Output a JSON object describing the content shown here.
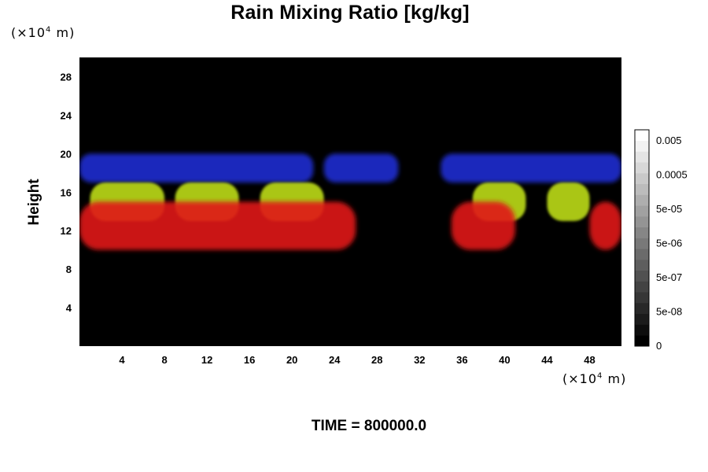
{
  "chart_data": {
    "type": "heatmap",
    "title": "Rain Mixing Ratio [kg/kg]",
    "ylabel": "Height",
    "xlabel": "",
    "y_unit": {
      "prefix": "(×10",
      "exp": "4",
      "suffix": " m)"
    },
    "x_unit": {
      "prefix": "(×10",
      "exp": "4",
      "suffix": " m)"
    },
    "xlim": [
      0,
      51
    ],
    "ylim": [
      0,
      30
    ],
    "x_ticks": [
      "4",
      "8",
      "12",
      "16",
      "20",
      "24",
      "28",
      "32",
      "36",
      "40",
      "44",
      "48"
    ],
    "y_ticks": [
      "4",
      "8",
      "12",
      "16",
      "20",
      "24",
      "28"
    ],
    "colorbar": {
      "labels": [
        "0",
        "5e-08",
        "5e-07",
        "5e-06",
        "5e-05",
        "0.0005",
        "0.005"
      ],
      "levels": 20,
      "colors": [
        "#000000",
        "#ffffff"
      ]
    },
    "background_color": "#000000",
    "layers": [
      {
        "color": "#1f2fd0",
        "y_range": [
          17,
          20
        ],
        "x_extent": [
          [
            0,
            22
          ],
          [
            23,
            30
          ],
          [
            34,
            51
          ]
        ]
      },
      {
        "color": "#bcdc18",
        "y_range": [
          13,
          17
        ],
        "x_extent": [
          [
            1,
            8
          ],
          [
            9,
            15
          ],
          [
            17,
            23
          ],
          [
            37,
            42
          ],
          [
            44,
            48
          ]
        ]
      },
      {
        "color": "#e01818",
        "y_range": [
          10,
          15
        ],
        "x_extent": [
          [
            0,
            26
          ],
          [
            35,
            41
          ],
          [
            48,
            51
          ]
        ]
      }
    ]
  },
  "footer": {
    "time_label": "TIME = 800000.0"
  }
}
